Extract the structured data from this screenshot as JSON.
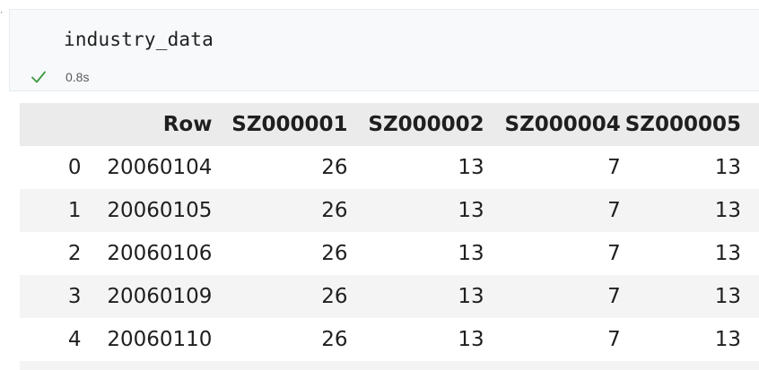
{
  "cell": {
    "code": "industry_data",
    "status": {
      "icon": "check-icon",
      "color": "#3c9a3c",
      "exec_time": "0.8s"
    }
  },
  "table": {
    "columns": [
      "",
      "Row",
      "SZ000001",
      "SZ000002",
      "SZ000004",
      "SZ000005"
    ],
    "rows": [
      {
        "index": "0",
        "Row": "20060104",
        "SZ000001": "26",
        "SZ000002": "13",
        "SZ000004": "7",
        "SZ000005": "13"
      },
      {
        "index": "1",
        "Row": "20060105",
        "SZ000001": "26",
        "SZ000002": "13",
        "SZ000004": "7",
        "SZ000005": "13"
      },
      {
        "index": "2",
        "Row": "20060106",
        "SZ000001": "26",
        "SZ000002": "13",
        "SZ000004": "7",
        "SZ000005": "13"
      },
      {
        "index": "3",
        "Row": "20060109",
        "SZ000001": "26",
        "SZ000002": "13",
        "SZ000004": "7",
        "SZ000005": "13"
      },
      {
        "index": "4",
        "Row": "20060110",
        "SZ000001": "26",
        "SZ000002": "13",
        "SZ000004": "7",
        "SZ000005": "13"
      }
    ]
  },
  "colors": {
    "cell_background": "#f7f9fb",
    "header_background": "#ebebeb",
    "stripe_background": "#f4f4f4"
  }
}
